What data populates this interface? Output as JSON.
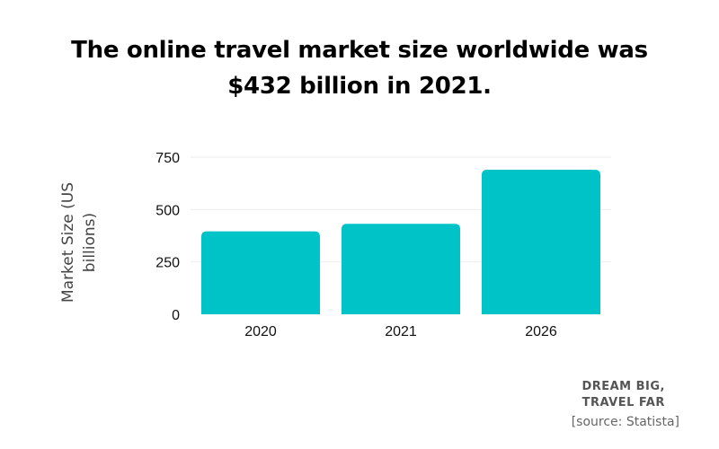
{
  "title": "The online travel market size worldwide was $432 billion in 2021.",
  "brand": {
    "line1": "DREAM BIG,",
    "line2": "TRAVEL FAR"
  },
  "source": "[source: Statista]",
  "colors": {
    "bar": "#00C3C8",
    "grid": "#EEEEEE"
  },
  "chart_data": {
    "type": "bar",
    "categories": [
      "2020",
      "2021",
      "2026"
    ],
    "values": [
      396,
      432,
      690
    ],
    "ylabel": "Market Size (US billions)",
    "yticks": [
      0,
      250,
      500,
      750
    ],
    "ylim": [
      0,
      750
    ],
    "grid": true,
    "legend": "none"
  }
}
